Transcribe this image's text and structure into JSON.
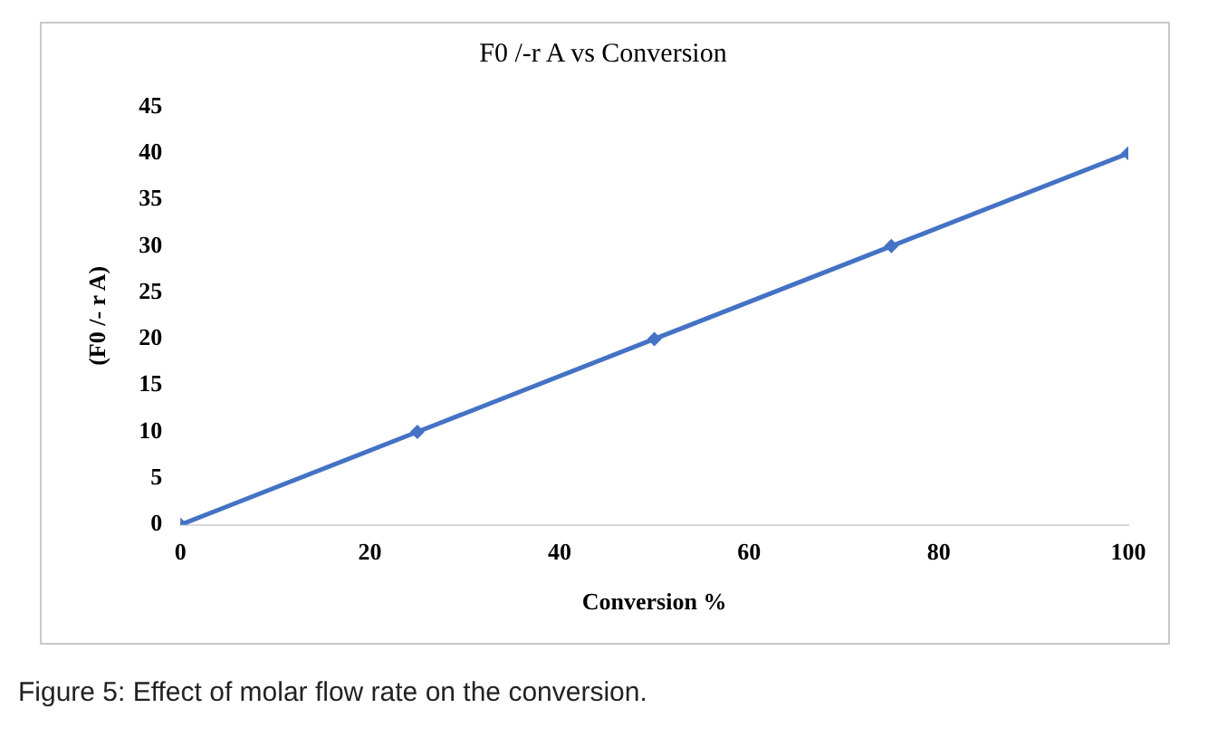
{
  "chart_data": {
    "type": "line",
    "title": "F0 /-r A vs Conversion",
    "xlabel": "Conversion %",
    "ylabel": "(F0 /- r A)",
    "x": [
      0,
      25,
      50,
      75,
      100
    ],
    "series": [
      {
        "color": "#4472c4",
        "values": [
          0,
          10,
          20,
          30,
          40
        ]
      }
    ],
    "xlim": [
      0,
      100
    ],
    "xticks": [
      0,
      20,
      40,
      60,
      80,
      100
    ],
    "ylim": [
      0,
      45
    ],
    "yticks": [
      0,
      5,
      10,
      15,
      20,
      25,
      30,
      35,
      40,
      45
    ],
    "grid": false,
    "legend": false,
    "marker": "diamond",
    "line_style": "solid",
    "annotations": [
      "Figure 5: Effect of molar flow rate on the conversion."
    ]
  }
}
